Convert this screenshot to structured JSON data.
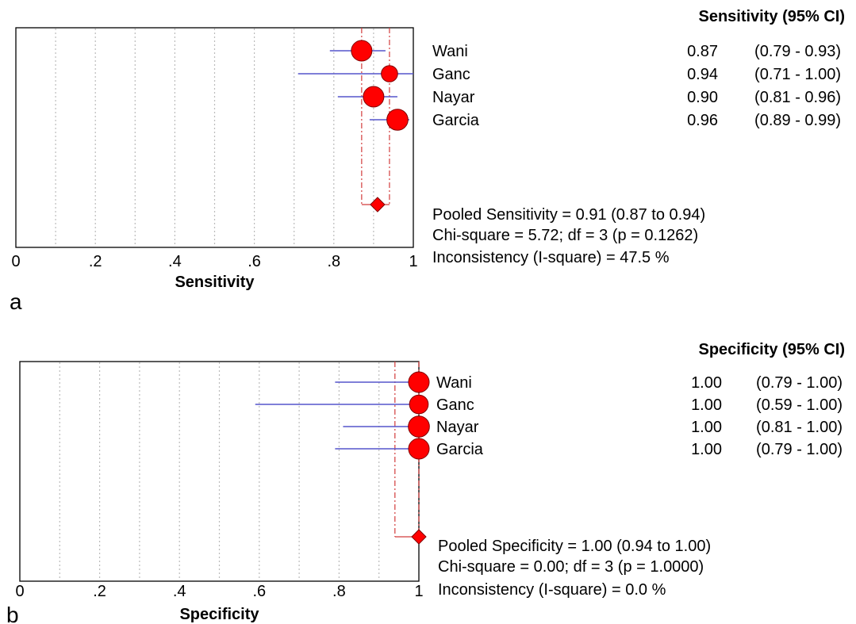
{
  "colors": {
    "marker": "#ff0000",
    "marker_stroke": "#800000",
    "ci_line": "#5555cc",
    "pooled_line": "#d23c3c",
    "grid": "#bbbbbb",
    "frame": "#000000"
  },
  "chart_data": [
    {
      "type": "scatter",
      "panel_label": "a",
      "title": "Sensitivity (95% CI)",
      "xlabel": "Sensitivity",
      "xlim": [
        0,
        1
      ],
      "x_ticks": [
        "0",
        ".2",
        ".4",
        ".6",
        ".8",
        "1"
      ],
      "x_tick_values": [
        0,
        0.2,
        0.4,
        0.6,
        0.8,
        1
      ],
      "grid_x": [
        0.1,
        0.2,
        0.3,
        0.4,
        0.5,
        0.6,
        0.7,
        0.8,
        0.9
      ],
      "studies": [
        {
          "name": "Wani",
          "value": 0.87,
          "low": 0.79,
          "high": 0.93,
          "value_text": "0.87",
          "ci_text": "(0.79 - 0.93)",
          "weight": 1.0
        },
        {
          "name": "Ganc",
          "value": 0.94,
          "low": 0.71,
          "high": 1.0,
          "value_text": "0.94",
          "ci_text": "(0.71 - 1.00)",
          "weight": 0.55
        },
        {
          "name": "Nayar",
          "value": 0.9,
          "low": 0.81,
          "high": 0.96,
          "value_text": "0.90",
          "ci_text": "(0.81 - 0.96)",
          "weight": 1.0
        },
        {
          "name": "Garcia",
          "value": 0.96,
          "low": 0.89,
          "high": 0.99,
          "value_text": "0.96",
          "ci_text": "(0.89 - 0.99)",
          "weight": 1.05
        }
      ],
      "pooled": {
        "value": 0.91,
        "low": 0.87,
        "high": 0.94
      },
      "stats": [
        "Pooled Sensitivity = 0.91 (0.87 to 0.94)",
        "Chi-square = 5.72; df =  3 (p = 0.1262)",
        "Inconsistency (I-square) = 47.5 %"
      ]
    },
    {
      "type": "scatter",
      "panel_label": "b",
      "title": "Specificity (95% CI)",
      "xlabel": "Specificity",
      "xlim": [
        0,
        1
      ],
      "x_ticks": [
        "0",
        ".2",
        ".4",
        ".6",
        ".8",
        "1"
      ],
      "x_tick_values": [
        0,
        0.2,
        0.4,
        0.6,
        0.8,
        1
      ],
      "grid_x": [
        0.1,
        0.2,
        0.3,
        0.4,
        0.5,
        0.6,
        0.7,
        0.8,
        0.9
      ],
      "studies": [
        {
          "name": "Wani",
          "value": 1.0,
          "low": 0.79,
          "high": 1.0,
          "value_text": "1.00",
          "ci_text": "(0.79 - 1.00)",
          "weight": 1.0
        },
        {
          "name": "Ganc",
          "value": 1.0,
          "low": 0.59,
          "high": 1.0,
          "value_text": "1.00",
          "ci_text": "(0.59 - 1.00)",
          "weight": 0.8
        },
        {
          "name": "Nayar",
          "value": 1.0,
          "low": 0.81,
          "high": 1.0,
          "value_text": "1.00",
          "ci_text": "(0.81 - 1.00)",
          "weight": 1.05
        },
        {
          "name": "Garcia",
          "value": 1.0,
          "low": 0.79,
          "high": 1.0,
          "value_text": "1.00",
          "ci_text": "(0.79 - 1.00)",
          "weight": 1.0
        }
      ],
      "pooled": {
        "value": 1.0,
        "low": 0.94,
        "high": 1.0
      },
      "stats": [
        "Pooled Specificity = 1.00 (0.94 to 1.00)",
        "Chi-square = 0.00; df =  3 (p = 1.0000)",
        "Inconsistency (I-square) = 0.0 %"
      ]
    }
  ]
}
